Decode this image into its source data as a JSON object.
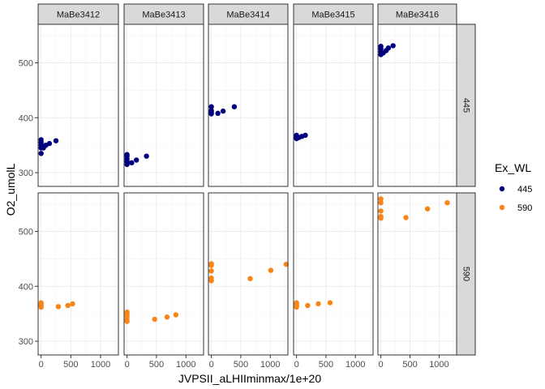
{
  "chart_data": {
    "type": "scatter",
    "title": "",
    "xlabel": "JVPSII_aLHIIminmax/1e+20",
    "ylabel": "O2_umolL",
    "xlim": [
      -50,
      1300
    ],
    "ylim": [
      275,
      570
    ],
    "x_ticks": [
      0,
      500,
      1000
    ],
    "y_ticks": [
      300,
      400,
      500
    ],
    "grid": true,
    "legend_position": "right",
    "legend_title": "Ex_WL",
    "legend_entries": [
      {
        "label": "445",
        "color": "#00007f"
      },
      {
        "label": "590",
        "color": "#f98518"
      }
    ],
    "col_facets": [
      "MaBe3412",
      "MaBe3413",
      "MaBe3414",
      "MaBe3415",
      "MaBe3416"
    ],
    "row_facets": [
      "445",
      "590"
    ],
    "panels": [
      {
        "col": "MaBe3412",
        "row": "445",
        "color": "#00007f",
        "points": [
          [
            0,
            335
          ],
          [
            0,
            345
          ],
          [
            0,
            350
          ],
          [
            0,
            355
          ],
          [
            0,
            360
          ],
          [
            20,
            348
          ],
          [
            40,
            345
          ],
          [
            80,
            350
          ],
          [
            140,
            353
          ],
          [
            250,
            358
          ]
        ]
      },
      {
        "col": "MaBe3413",
        "row": "445",
        "color": "#00007f",
        "points": [
          [
            0,
            315
          ],
          [
            0,
            320
          ],
          [
            0,
            325
          ],
          [
            0,
            330
          ],
          [
            0,
            333
          ],
          [
            80,
            318
          ],
          [
            160,
            323
          ],
          [
            330,
            330
          ]
        ]
      },
      {
        "col": "MaBe3414",
        "row": "445",
        "color": "#00007f",
        "points": [
          [
            0,
            407
          ],
          [
            0,
            410
          ],
          [
            0,
            413
          ],
          [
            0,
            420
          ],
          [
            110,
            408
          ],
          [
            200,
            412
          ],
          [
            390,
            420
          ]
        ]
      },
      {
        "col": "MaBe3415",
        "row": "445",
        "color": "#00007f",
        "points": [
          [
            0,
            362
          ],
          [
            0,
            365
          ],
          [
            0,
            368
          ],
          [
            40,
            364
          ],
          [
            90,
            366
          ],
          [
            150,
            368
          ]
        ]
      },
      {
        "col": "MaBe3416",
        "row": "445",
        "color": "#00007f",
        "points": [
          [
            0,
            515
          ],
          [
            0,
            520
          ],
          [
            0,
            525
          ],
          [
            0,
            530
          ],
          [
            40,
            518
          ],
          [
            90,
            522
          ],
          [
            130,
            527
          ],
          [
            210,
            531
          ]
        ]
      },
      {
        "col": "MaBe3412",
        "row": "590",
        "color": "#f98518",
        "points": [
          [
            0,
            362
          ],
          [
            0,
            365
          ],
          [
            0,
            368
          ],
          [
            0,
            370
          ],
          [
            290,
            363
          ],
          [
            450,
            365
          ],
          [
            530,
            368
          ]
        ]
      },
      {
        "col": "MaBe3413",
        "row": "590",
        "color": "#f98518",
        "points": [
          [
            0,
            336
          ],
          [
            0,
            340
          ],
          [
            0,
            345
          ],
          [
            0,
            350
          ],
          [
            0,
            353
          ],
          [
            470,
            340
          ],
          [
            680,
            344
          ],
          [
            830,
            348
          ]
        ]
      },
      {
        "col": "MaBe3414",
        "row": "590",
        "color": "#f98518",
        "points": [
          [
            0,
            410
          ],
          [
            0,
            415
          ],
          [
            0,
            428
          ],
          [
            0,
            438
          ],
          [
            0,
            441
          ],
          [
            660,
            414
          ],
          [
            1010,
            429
          ],
          [
            1270,
            440
          ]
        ]
      },
      {
        "col": "MaBe3415",
        "row": "590",
        "color": "#f98518",
        "points": [
          [
            0,
            362
          ],
          [
            0,
            365
          ],
          [
            0,
            368
          ],
          [
            0,
            370
          ],
          [
            190,
            365
          ],
          [
            370,
            368
          ],
          [
            570,
            370
          ]
        ]
      },
      {
        "col": "MaBe3416",
        "row": "590",
        "color": "#f98518",
        "points": [
          [
            0,
            524
          ],
          [
            0,
            527
          ],
          [
            0,
            537
          ],
          [
            0,
            552
          ],
          [
            0,
            559
          ],
          [
            430,
            525
          ],
          [
            800,
            541
          ],
          [
            1140,
            552
          ]
        ]
      }
    ]
  }
}
